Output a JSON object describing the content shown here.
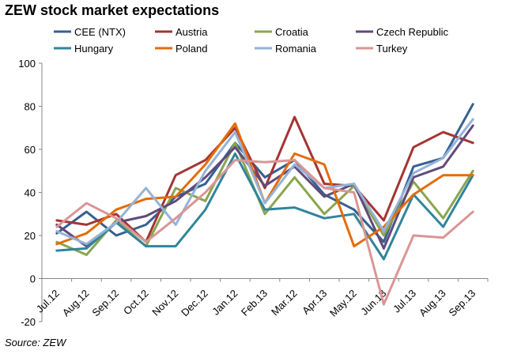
{
  "chart_data": {
    "type": "line",
    "title": "ZEW stock market expectations",
    "source_label": "Source: ZEW",
    "xlabel": "",
    "ylabel": "",
    "ylim": [
      -20,
      100
    ],
    "yticks": [
      -20,
      0,
      20,
      40,
      60,
      80,
      100
    ],
    "categories": [
      "Jul.12",
      "Aug.12",
      "Sep.12",
      "Oct.12",
      "Nov.12",
      "Dec.12",
      "Jan.12",
      "Feb.13",
      "Mar.12",
      "Apr.13",
      "May.12",
      "Jun.13",
      "Jul.13",
      "Aug.13",
      "Sep.13"
    ],
    "legend_position": "top",
    "series": [
      {
        "name": "CEE (NTX)",
        "color": "#366092",
        "values": [
          21,
          31,
          20,
          25,
          38,
          44,
          63,
          47,
          55,
          39,
          32,
          17,
          52,
          56,
          81
        ]
      },
      {
        "name": "Austria",
        "color": "#a33533",
        "values": [
          27,
          25,
          30,
          17,
          48,
          55,
          70,
          42,
          75,
          44,
          43,
          27,
          61,
          68,
          63
        ]
      },
      {
        "name": "Croatia",
        "color": "#89a54e",
        "values": [
          17,
          11,
          27,
          15,
          42,
          36,
          63,
          30,
          47,
          30,
          43,
          20,
          45,
          28,
          50
        ]
      },
      {
        "name": "Czech Republic",
        "color": "#604a7b",
        "values": [
          25,
          15,
          26,
          29,
          36,
          47,
          61,
          43,
          52,
          38,
          44,
          14,
          47,
          52,
          71
        ]
      },
      {
        "name": "Hungary",
        "color": "#31849b",
        "values": [
          13,
          14,
          26,
          15,
          15,
          32,
          58,
          32,
          33,
          28,
          30,
          9,
          39,
          24,
          48
        ]
      },
      {
        "name": "Poland",
        "color": "#e46c0a",
        "values": [
          16,
          21,
          32,
          37,
          38,
          53,
          72,
          35,
          58,
          53,
          15,
          24,
          39,
          48,
          48
        ]
      },
      {
        "name": "Romania",
        "color": "#95b3d7",
        "values": [
          22,
          16,
          26,
          42,
          25,
          50,
          68,
          35,
          53,
          42,
          44,
          22,
          49,
          56,
          74
        ]
      },
      {
        "name": "Turkey",
        "color": "#d99694",
        "values": [
          24,
          35,
          28,
          17,
          28,
          40,
          55,
          54,
          55,
          42,
          40,
          -12,
          20,
          19,
          31
        ]
      }
    ]
  }
}
